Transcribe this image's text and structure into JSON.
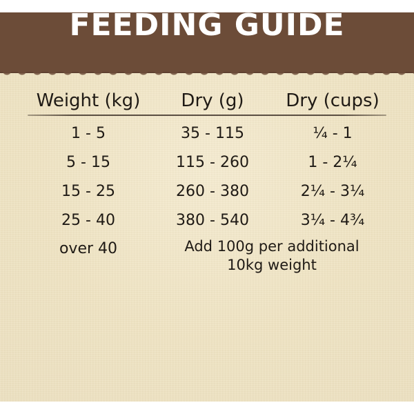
{
  "title": "FEEDING GUIDE",
  "table": {
    "headers": [
      "Weight (kg)",
      "Dry (g)",
      "Dry (cups)"
    ],
    "rows": [
      [
        "1 - 5",
        "35 - 115",
        "¼ - 1"
      ],
      [
        "5 - 15",
        "115 - 260",
        "1 - 2¼"
      ],
      [
        "15 - 25",
        "260 - 380",
        "2¼ - 3¼"
      ],
      [
        "25 - 40",
        "380 - 540",
        "3¼ - 4¾"
      ]
    ],
    "last_row": {
      "weight": "over 40",
      "note": "Add 100g per additional 10kg weight"
    }
  },
  "colors": {
    "banner": "#6c4c38",
    "panel": "#f2e7c8",
    "text": "#1f1a15",
    "title_text": "#ffffff"
  }
}
